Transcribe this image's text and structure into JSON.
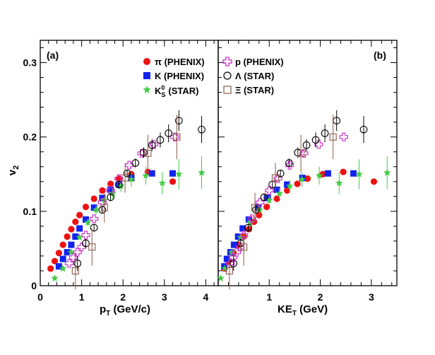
{
  "chart_data": {
    "type": "scatter",
    "ylabel": "v2",
    "ylim": [
      0,
      0.33
    ],
    "yticks": [
      "0",
      "0.1",
      "0.2",
      "0.3"
    ],
    "yticks_values": [
      0,
      0.1,
      0.2,
      0.3
    ],
    "legend": {
      "pi": "π (PHENIX)",
      "K": "K (PHENIX)",
      "K0s": "K",
      "K0s_tail": "(STAR)",
      "K0s_sup": "0",
      "K0s_sub": "S",
      "p": "p (PHENIX)",
      "Lambda": "Λ (STAR)",
      "Xi": "Ξ (STAR)"
    },
    "panels": [
      {
        "tag": "(a)",
        "xlabel_main": "p",
        "xlabel_sub": "T",
        "xlabel_tail": " (GeV/c)",
        "xlim": [
          0,
          4.3
        ],
        "xticks": [
          "0",
          "1",
          "2",
          "3",
          "4"
        ],
        "xticks_values": [
          0,
          1,
          2,
          3,
          4
        ],
        "series": [
          {
            "name": "pi",
            "color": "#ee1111",
            "marker": "circle",
            "x": [
              0.25,
              0.35,
              0.45,
              0.55,
              0.65,
              0.75,
              0.85,
              0.95,
              1.1,
              1.3,
              1.5,
              1.7,
              1.9,
              2.2,
              2.6,
              3.2
            ],
            "y": [
              0.023,
              0.033,
              0.044,
              0.055,
              0.066,
              0.076,
              0.086,
              0.095,
              0.106,
              0.117,
              0.128,
              0.137,
              0.144,
              0.15,
              0.153,
              0.14
            ]
          },
          {
            "name": "K",
            "color": "#1122ee",
            "marker": "square",
            "x": [
              0.45,
              0.55,
              0.65,
              0.75,
              0.85,
              0.95,
              1.1,
              1.3,
              1.5,
              1.7,
              1.9,
              2.2,
              2.7,
              3.2
            ],
            "y": [
              0.026,
              0.036,
              0.045,
              0.055,
              0.066,
              0.077,
              0.089,
              0.105,
              0.118,
              0.129,
              0.136,
              0.145,
              0.151,
              0.151
            ]
          },
          {
            "name": "K0s",
            "color": "#44cc44",
            "marker": "star",
            "x": [
              0.35,
              0.55,
              0.75,
              0.95,
              1.15,
              1.35,
              1.55,
              1.75,
              1.95,
              2.2,
              2.55,
              2.95,
              3.35,
              3.9
            ],
            "y": [
              0.01,
              0.023,
              0.045,
              0.065,
              0.085,
              0.102,
              0.115,
              0.124,
              0.134,
              0.143,
              0.148,
              0.138,
              0.15,
              0.152
            ],
            "err": [
              0,
              0,
              0,
              0,
              0.005,
              0.006,
              0.006,
              0.007,
              0.008,
              0.01,
              0.012,
              0.015,
              0.02,
              0.022
            ]
          },
          {
            "name": "p",
            "color": "#cc33cc",
            "marker": "cross",
            "x": [
              0.7,
              0.8,
              0.9,
              1.0,
              1.1,
              1.3,
              1.5,
              1.7,
              1.9,
              2.15,
              2.45,
              2.75,
              3.25
            ],
            "y": [
              0.03,
              0.038,
              0.045,
              0.052,
              0.068,
              0.09,
              0.112,
              0.128,
              0.144,
              0.162,
              0.178,
              0.19,
              0.2
            ]
          },
          {
            "name": "Lambda",
            "color": "#000000",
            "marker": "ocircle",
            "x": [
              0.9,
              1.1,
              1.3,
              1.5,
              1.7,
              1.9,
              2.1,
              2.3,
              2.5,
              2.7,
              2.9,
              3.1,
              3.35,
              3.9
            ],
            "y": [
              0.03,
              0.057,
              0.078,
              0.102,
              0.119,
              0.136,
              0.151,
              0.165,
              0.179,
              0.189,
              0.196,
              0.205,
              0.222,
              0.21
            ],
            "err": [
              0.01,
              0.006,
              0.005,
              0.005,
              0.005,
              0.005,
              0.005,
              0.006,
              0.007,
              0.008,
              0.01,
              0.012,
              0.014,
              0.018
            ]
          },
          {
            "name": "Xi",
            "color": "#8b5a4a",
            "marker": "osquare",
            "x": [
              0.85,
              1.25,
              1.55,
              2.05,
              2.6,
              3.3
            ],
            "y": [
              0.02,
              0.052,
              0.105,
              0.145,
              0.178,
              0.2
            ],
            "err": [
              0.025,
              0.025,
              0.02,
              0.02,
              0.025,
              0.03
            ]
          }
        ]
      },
      {
        "tag": "(b)",
        "xlabel_main": "KE",
        "xlabel_sub": "T",
        "xlabel_tail": " (GeV)",
        "xlim": [
          0,
          3.5
        ],
        "xticks": [
          "1",
          "2",
          "3"
        ],
        "xticks_values": [
          1,
          2,
          3
        ],
        "series": [
          {
            "name": "pi",
            "color": "#ee1111",
            "marker": "circle",
            "x": [
              0.12,
              0.2,
              0.3,
              0.4,
              0.5,
              0.6,
              0.7,
              0.8,
              0.95,
              1.15,
              1.35,
              1.55,
              1.75,
              2.05,
              2.45,
              3.05
            ],
            "y": [
              0.023,
              0.033,
              0.044,
              0.055,
              0.066,
              0.076,
              0.086,
              0.095,
              0.106,
              0.117,
              0.128,
              0.137,
              0.144,
              0.15,
              0.153,
              0.14
            ]
          },
          {
            "name": "K",
            "color": "#1122ee",
            "marker": "square",
            "x": [
              0.12,
              0.17,
              0.24,
              0.31,
              0.39,
              0.48,
              0.6,
              0.78,
              0.97,
              1.15,
              1.35,
              1.65,
              2.15,
              2.65
            ],
            "y": [
              0.026,
              0.036,
              0.045,
              0.055,
              0.066,
              0.077,
              0.089,
              0.105,
              0.118,
              0.129,
              0.136,
              0.145,
              0.151,
              0.151
            ]
          },
          {
            "name": "K0s",
            "color": "#44cc44",
            "marker": "star",
            "x": [
              0.05,
              0.13,
              0.27,
              0.44,
              0.62,
              0.81,
              1.0,
              1.2,
              1.4,
              1.64,
              1.98,
              2.37,
              2.76,
              3.31
            ],
            "y": [
              0.01,
              0.023,
              0.045,
              0.065,
              0.085,
              0.102,
              0.115,
              0.124,
              0.134,
              0.143,
              0.148,
              0.138,
              0.15,
              0.152
            ],
            "err": [
              0,
              0,
              0,
              0,
              0.005,
              0.006,
              0.006,
              0.007,
              0.008,
              0.01,
              0.012,
              0.015,
              0.02,
              0.022
            ]
          },
          {
            "name": "p",
            "color": "#cc33cc",
            "marker": "cross",
            "x": [
              0.24,
              0.29,
              0.36,
              0.43,
              0.5,
              0.66,
              0.82,
              1.0,
              1.17,
              1.4,
              1.68,
              1.97,
              2.46
            ],
            "y": [
              0.03,
              0.038,
              0.045,
              0.052,
              0.068,
              0.09,
              0.112,
              0.128,
              0.144,
              0.162,
              0.178,
              0.19,
              0.2
            ]
          },
          {
            "name": "Lambda",
            "color": "#000000",
            "marker": "ocircle",
            "x": [
              0.3,
              0.44,
              0.59,
              0.74,
              0.9,
              1.06,
              1.22,
              1.39,
              1.56,
              1.73,
              1.91,
              2.09,
              2.32,
              2.85
            ],
            "y": [
              0.03,
              0.057,
              0.078,
              0.102,
              0.119,
              0.136,
              0.151,
              0.165,
              0.179,
              0.189,
              0.196,
              0.205,
              0.222,
              0.21
            ],
            "err": [
              0.01,
              0.006,
              0.005,
              0.005,
              0.005,
              0.005,
              0.005,
              0.006,
              0.007,
              0.008,
              0.01,
              0.012,
              0.014,
              0.018
            ]
          },
          {
            "name": "Xi",
            "color": "#8b5a4a",
            "marker": "osquare",
            "x": [
              0.22,
              0.5,
              0.72,
              1.12,
              1.62,
              2.25
            ],
            "y": [
              0.02,
              0.052,
              0.105,
              0.145,
              0.178,
              0.2
            ],
            "err": [
              0.025,
              0.025,
              0.02,
              0.02,
              0.025,
              0.03
            ]
          }
        ]
      }
    ]
  }
}
